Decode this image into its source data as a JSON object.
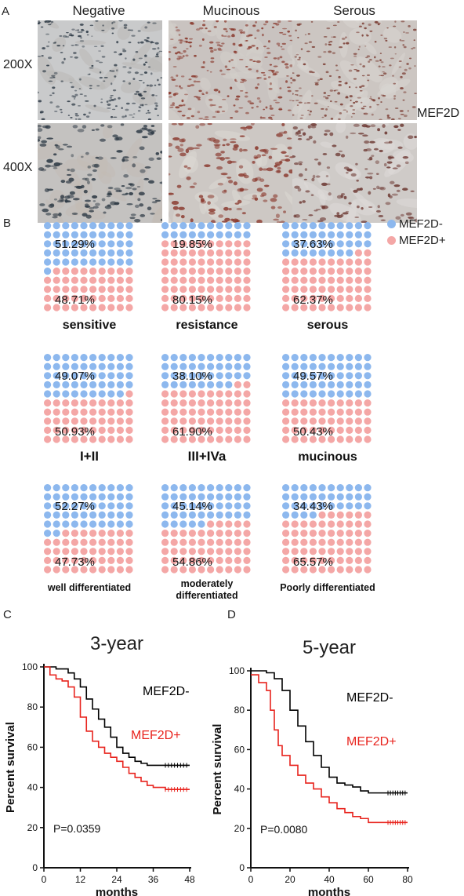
{
  "panel_a": {
    "label": "A",
    "columns": [
      "Negative",
      "Mucinous",
      "Serous"
    ],
    "rows": [
      "200X",
      "400X"
    ],
    "marker": "MEF2D"
  },
  "panel_b": {
    "label": "B",
    "legend": [
      {
        "label": "MEF2D-",
        "color": "#8db8ee"
      },
      {
        "label": "MEF2D+",
        "color": "#f4a7a6"
      }
    ]
  },
  "panel_c": {
    "label": "C"
  },
  "panel_d": {
    "label": "D"
  },
  "colors": {
    "negative": "#8db8ee",
    "positive": "#f4a7a6",
    "curve_neg": "#000000",
    "curve_pos": "#e8231d"
  },
  "chart_data": [
    {
      "type": "waffle",
      "groups": [
        {
          "label": "sensitive",
          "negative": "51.29%",
          "positive": "48.71%",
          "neg_value": 51.29,
          "pos_value": 48.71
        },
        {
          "label": "resistance",
          "negative": "19.85%",
          "positive": "80.15%",
          "neg_value": 19.85,
          "pos_value": 80.15
        },
        {
          "label": "serous",
          "negative": "37.63%",
          "positive": "62.37%",
          "neg_value": 37.63,
          "pos_value": 62.37
        },
        {
          "label": "I+II",
          "negative": "49.07%",
          "positive": "50.93%",
          "neg_value": 49.07,
          "pos_value": 50.93
        },
        {
          "label": "III+IVa",
          "negative": "38.10%",
          "positive": "61.90%",
          "neg_value": 38.1,
          "pos_value": 61.9
        },
        {
          "label": "mucinous",
          "negative": "49.57%",
          "positive": "50.43%",
          "neg_value": 49.57,
          "pos_value": 50.43
        },
        {
          "label": "well differentiated",
          "negative": "52.27%",
          "positive": "47.73%",
          "neg_value": 52.27,
          "pos_value": 47.73
        },
        {
          "label": "moderately differentiated",
          "negative": "45.14%",
          "positive": "54.86%",
          "neg_value": 45.14,
          "pos_value": 54.86
        },
        {
          "label": "Poorly differentiated",
          "negative": "34.43%",
          "positive": "65.57%",
          "neg_value": 34.43,
          "pos_value": 65.57
        }
      ]
    },
    {
      "type": "line",
      "title": "3-year",
      "xlabel": "months",
      "ylabel": "Percent survival",
      "xlim": [
        0,
        48
      ],
      "ylim": [
        0,
        100
      ],
      "xticks": [
        "0",
        "12",
        "24",
        "36",
        "48"
      ],
      "yticks": [
        "0",
        "20",
        "40",
        "60",
        "80",
        "100"
      ],
      "pvalue": "P=0.0359",
      "series": [
        {
          "name": "MEF2D-",
          "x": [
            0,
            4,
            8,
            10,
            12,
            14,
            16,
            18,
            20,
            22,
            24,
            26,
            28,
            30,
            32,
            34,
            36,
            40,
            48
          ],
          "y": [
            100,
            99,
            97,
            94,
            90,
            84,
            79,
            74,
            70,
            65,
            60,
            57,
            55,
            53,
            52,
            51,
            51,
            51,
            51
          ]
        },
        {
          "name": "MEF2D+",
          "x": [
            0,
            2,
            4,
            6,
            8,
            10,
            12,
            14,
            16,
            18,
            20,
            22,
            24,
            26,
            28,
            30,
            32,
            34,
            36,
            40,
            48
          ],
          "y": [
            100,
            96,
            94,
            93,
            90,
            85,
            75,
            68,
            63,
            60,
            57,
            55,
            53,
            50,
            47,
            45,
            43,
            41,
            40,
            39,
            39
          ]
        }
      ]
    },
    {
      "type": "line",
      "title": "5-year",
      "xlabel": "months",
      "ylabel": "Percent survival",
      "xlim": [
        0,
        80
      ],
      "ylim": [
        0,
        100
      ],
      "xticks": [
        "0",
        "20",
        "40",
        "60",
        "80"
      ],
      "yticks": [
        "0",
        "20",
        "40",
        "60",
        "80",
        "100"
      ],
      "pvalue": "P=0.0080",
      "series": [
        {
          "name": "MEF2D-",
          "x": [
            0,
            8,
            12,
            16,
            20,
            24,
            28,
            32,
            36,
            40,
            44,
            48,
            52,
            56,
            60,
            70,
            80
          ],
          "y": [
            100,
            99,
            96,
            90,
            80,
            72,
            64,
            57,
            51,
            46,
            43,
            42,
            41,
            39,
            38,
            38,
            38
          ]
        },
        {
          "name": "MEF2D+",
          "x": [
            0,
            4,
            8,
            10,
            12,
            14,
            16,
            20,
            24,
            28,
            32,
            36,
            40,
            44,
            48,
            52,
            56,
            60,
            70,
            80
          ],
          "y": [
            98,
            94,
            90,
            80,
            70,
            62,
            57,
            52,
            47,
            43,
            40,
            36,
            33,
            30,
            28,
            26,
            25,
            23,
            23,
            23
          ]
        }
      ]
    }
  ]
}
